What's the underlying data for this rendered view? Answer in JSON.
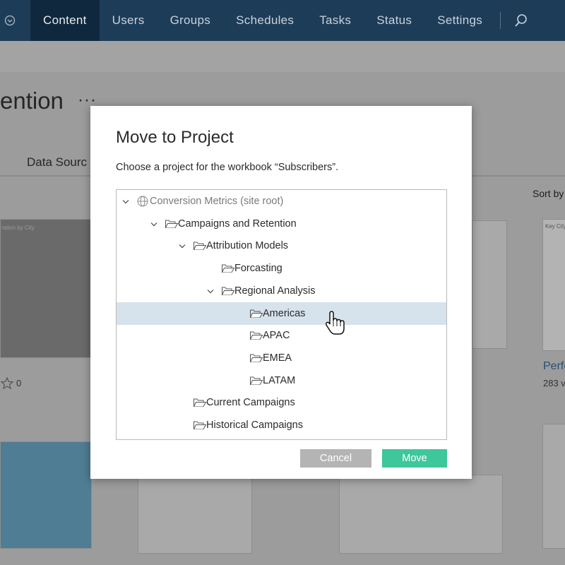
{
  "nav": {
    "items": [
      "Content",
      "Users",
      "Groups",
      "Schedules",
      "Tasks",
      "Status",
      "Settings"
    ],
    "active": "Content"
  },
  "background": {
    "page_title": "ention",
    "tab": "Data Sourc",
    "sort": "Sort by",
    "card_left_title": "ration by City",
    "favorites": "0",
    "card_right_title": "Key City",
    "card_right_name": "Perfo",
    "card_right_views": "283 v"
  },
  "dialog": {
    "title": "Move to Project",
    "prompt": "Choose a project for the workbook “Subscribers”.",
    "tree": {
      "label": "Conversion Metrics (site root)",
      "icon": "globe",
      "children": [
        {
          "label": "Campaigns and Retention",
          "children": [
            {
              "label": "Attribution Models",
              "children": [
                {
                  "label": "Forcasting"
                },
                {
                  "label": "Regional Analysis",
                  "children": [
                    {
                      "label": "Americas",
                      "selected": true
                    },
                    {
                      "label": "APAC"
                    },
                    {
                      "label": "EMEA"
                    },
                    {
                      "label": "LATAM"
                    }
                  ]
                }
              ]
            },
            {
              "label": "Current Campaigns"
            },
            {
              "label": "Historical Campaigns"
            }
          ]
        }
      ]
    },
    "cancel": "Cancel",
    "move": "Move"
  }
}
